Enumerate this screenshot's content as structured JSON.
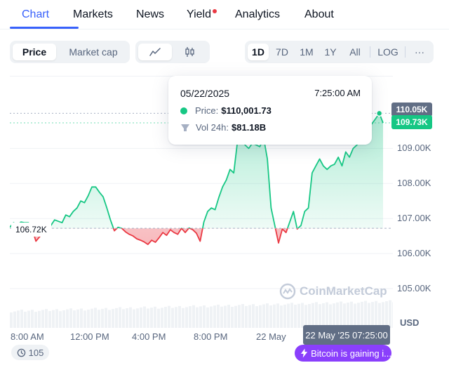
{
  "tabs": [
    {
      "label": "Chart",
      "active": true
    },
    {
      "label": "Markets"
    },
    {
      "label": "News"
    },
    {
      "label": "Yield",
      "notification": true
    },
    {
      "label": "Analytics"
    },
    {
      "label": "About"
    }
  ],
  "toolbar": {
    "view_toggle": [
      {
        "label": "Price",
        "active": true
      },
      {
        "label": "Market cap"
      }
    ],
    "chart_style_icons": [
      "line-chart-icon",
      "candlestick-icon"
    ],
    "ranges": [
      "1D",
      "7D",
      "1M",
      "1Y",
      "All"
    ],
    "active_range": "1D",
    "log_label": "LOG",
    "more_label": "···"
  },
  "chart_data": {
    "type": "line",
    "ylabel": "USD",
    "ylim": [
      104500,
      110700
    ],
    "y_ticks": [
      "110.05K",
      "109.00K",
      "108.00K",
      "107.00K",
      "106.00K",
      "105.00K"
    ],
    "x_ticks": [
      "8:00 AM",
      "12:00 PM",
      "4:00 PM",
      "8:00 PM",
      "22 May"
    ],
    "baseline_label": "106.72K",
    "baseline_value": 106720,
    "current_price_label": "109.73K",
    "high_label": "110.05K",
    "colors": {
      "up": "#16c784",
      "down": "#ea3943",
      "baseline": "#a6b0c3"
    },
    "x": [
      0,
      0.01,
      0.02,
      0.03,
      0.04,
      0.05,
      0.06,
      0.07,
      0.08,
      0.09,
      0.1,
      0.11,
      0.12,
      0.13,
      0.14,
      0.15,
      0.16,
      0.17,
      0.18,
      0.19,
      0.2,
      0.21,
      0.22,
      0.23,
      0.24,
      0.25,
      0.26,
      0.27,
      0.28,
      0.29,
      0.3,
      0.31,
      0.32,
      0.33,
      0.34,
      0.35,
      0.36,
      0.37,
      0.38,
      0.39,
      0.4,
      0.41,
      0.42,
      0.43,
      0.44,
      0.45,
      0.46,
      0.47,
      0.48,
      0.49,
      0.5,
      0.51,
      0.52,
      0.53,
      0.54,
      0.55,
      0.56,
      0.57,
      0.58,
      0.59,
      0.6,
      0.61,
      0.62,
      0.63,
      0.64,
      0.65,
      0.66,
      0.67,
      0.68,
      0.69,
      0.7,
      0.71,
      0.72,
      0.73,
      0.74,
      0.75,
      0.76,
      0.77,
      0.78,
      0.79,
      0.8,
      0.81,
      0.82,
      0.83,
      0.84,
      0.85,
      0.86,
      0.87,
      0.88,
      0.89,
      0.9,
      0.91,
      0.92,
      0.93,
      0.94,
      0.95,
      0.96,
      0.97,
      0.98,
      0.99,
      1.0
    ],
    "values": [
      106750,
      106880,
      106820,
      106900,
      106880,
      106880,
      106700,
      106350,
      106480,
      106650,
      106700,
      106800,
      106960,
      106920,
      106880,
      107100,
      107050,
      107200,
      107300,
      107500,
      107450,
      107650,
      107900,
      107900,
      107750,
      107620,
      107300,
      106950,
      106650,
      106750,
      106720,
      106620,
      106550,
      106500,
      106420,
      106380,
      106330,
      106260,
      106380,
      106320,
      106450,
      106600,
      106520,
      106680,
      106600,
      106550,
      106720,
      106600,
      106730,
      106680,
      106580,
      106350,
      106900,
      107200,
      107300,
      107250,
      107600,
      107900,
      108100,
      108400,
      108300,
      109200,
      109400,
      109100,
      109000,
      109150,
      109100,
      109050,
      109300,
      108700,
      107300,
      106800,
      106300,
      106700,
      106600,
      106900,
      107200,
      106700,
      106800,
      107200,
      107300,
      108300,
      108500,
      108700,
      108500,
      108400,
      108500,
      108550,
      108750,
      108500,
      108900,
      108750,
      109000,
      109100,
      109200,
      109350,
      109650,
      109700,
      109850,
      110001.73,
      109730
    ]
  },
  "tooltip": {
    "date": "05/22/2025",
    "time": "7:25:00 AM",
    "price_label": "Price:",
    "price_value": "$110,001.73",
    "vol_label": "Vol 24h:",
    "vol_value": "$81.18B"
  },
  "time_tag": "22 May '25 07:25:00",
  "watermark": "CoinMarketCap",
  "replay_count": "105",
  "news_pill": "Bitcoin is gaining i..."
}
